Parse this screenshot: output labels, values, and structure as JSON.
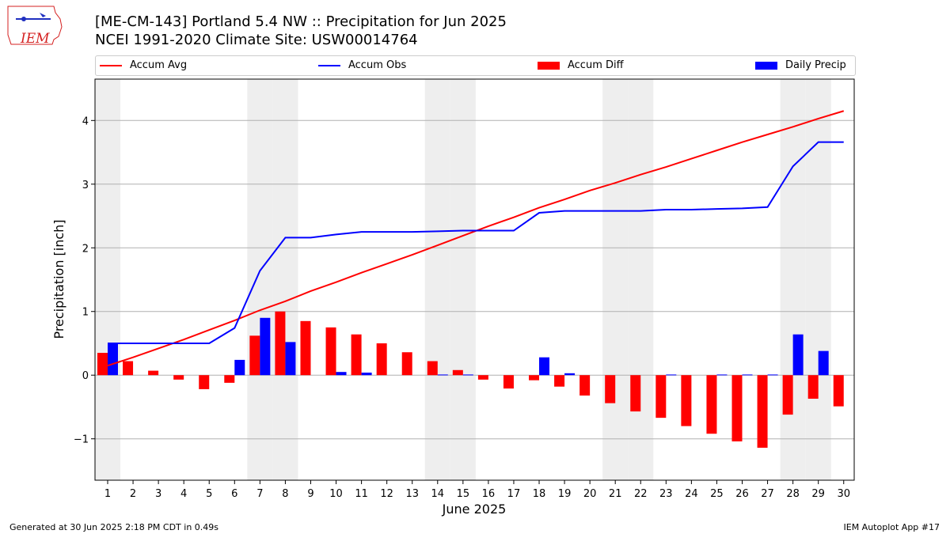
{
  "title_line1": "[ME-CM-143] Portland 5.4 NW :: Precipitation for Jun 2025",
  "title_line2": "NCEI 1991-2020 Climate Site: USW00014764",
  "footer_left": "Generated at 30 Jun 2025 2:18 PM CDT in 0.49s",
  "footer_right": "IEM Autoplot App #17",
  "logo_text": "IEM",
  "legend": {
    "accum_avg": "Accum Avg",
    "accum_obs": "Accum Obs",
    "accum_diff": "Accum Diff",
    "daily_precip": "Daily Precip"
  },
  "colors": {
    "avg": "#ff0000",
    "obs": "#0000ff",
    "diff": "#ff0000",
    "daily": "#0000ff",
    "weekend_shade": "#eeeeee",
    "grid": "#b0b0b0"
  },
  "chart_data": {
    "type": "bar",
    "xlabel": "June 2025",
    "ylabel": "Precipitation [inch]",
    "ylim": [
      -1.65,
      4.65
    ],
    "yticks": [
      -1,
      0,
      1,
      2,
      3,
      4
    ],
    "ytick_labels": [
      "−1",
      "0",
      "1",
      "2",
      "3",
      "4"
    ],
    "days": [
      1,
      2,
      3,
      4,
      5,
      6,
      7,
      8,
      9,
      10,
      11,
      12,
      13,
      14,
      15,
      16,
      17,
      18,
      19,
      20,
      21,
      22,
      23,
      24,
      25,
      26,
      27,
      28,
      29,
      30
    ],
    "shaded_days": [
      1,
      7,
      8,
      14,
      15,
      21,
      22,
      28,
      29
    ],
    "grid": "horizontal",
    "legend_position": "top",
    "series": [
      {
        "name": "Accum Avg",
        "type": "line",
        "values": [
          0.15,
          0.28,
          0.42,
          0.56,
          0.71,
          0.86,
          1.02,
          1.16,
          1.32,
          1.46,
          1.61,
          1.75,
          1.89,
          2.04,
          2.19,
          2.34,
          2.48,
          2.63,
          2.76,
          2.9,
          3.02,
          3.15,
          3.27,
          3.4,
          3.53,
          3.66,
          3.78,
          3.9,
          4.03,
          4.15
        ]
      },
      {
        "name": "Accum Obs",
        "type": "line",
        "values": [
          0.5,
          0.5,
          0.5,
          0.5,
          0.5,
          0.74,
          1.64,
          2.16,
          2.16,
          2.21,
          2.25,
          2.25,
          2.25,
          2.26,
          2.27,
          2.27,
          2.27,
          2.55,
          2.58,
          2.58,
          2.58,
          2.58,
          2.6,
          2.6,
          2.61,
          2.62,
          2.64,
          3.28,
          3.66,
          3.66
        ]
      },
      {
        "name": "Accum Diff",
        "type": "bar",
        "values": [
          0.35,
          0.22,
          0.07,
          -0.07,
          -0.22,
          -0.12,
          0.62,
          1.0,
          0.85,
          0.75,
          0.64,
          0.5,
          0.36,
          0.22,
          0.08,
          -0.07,
          -0.21,
          -0.08,
          -0.18,
          -0.32,
          -0.44,
          -0.57,
          -0.67,
          -0.8,
          -0.92,
          -1.04,
          -1.14,
          -0.62,
          -0.37,
          -0.49
        ]
      },
      {
        "name": "Daily Precip",
        "type": "bar",
        "values": [
          0.5,
          0.0,
          0.0,
          0.0,
          0.0,
          0.24,
          0.9,
          0.52,
          0.0,
          0.05,
          0.04,
          0.0,
          0.0,
          0.01,
          0.01,
          0.0,
          0.0,
          0.28,
          0.03,
          0.0,
          0.0,
          0.0,
          0.01,
          0.0,
          0.01,
          0.01,
          0.01,
          0.64,
          0.38,
          0.0
        ]
      }
    ]
  }
}
